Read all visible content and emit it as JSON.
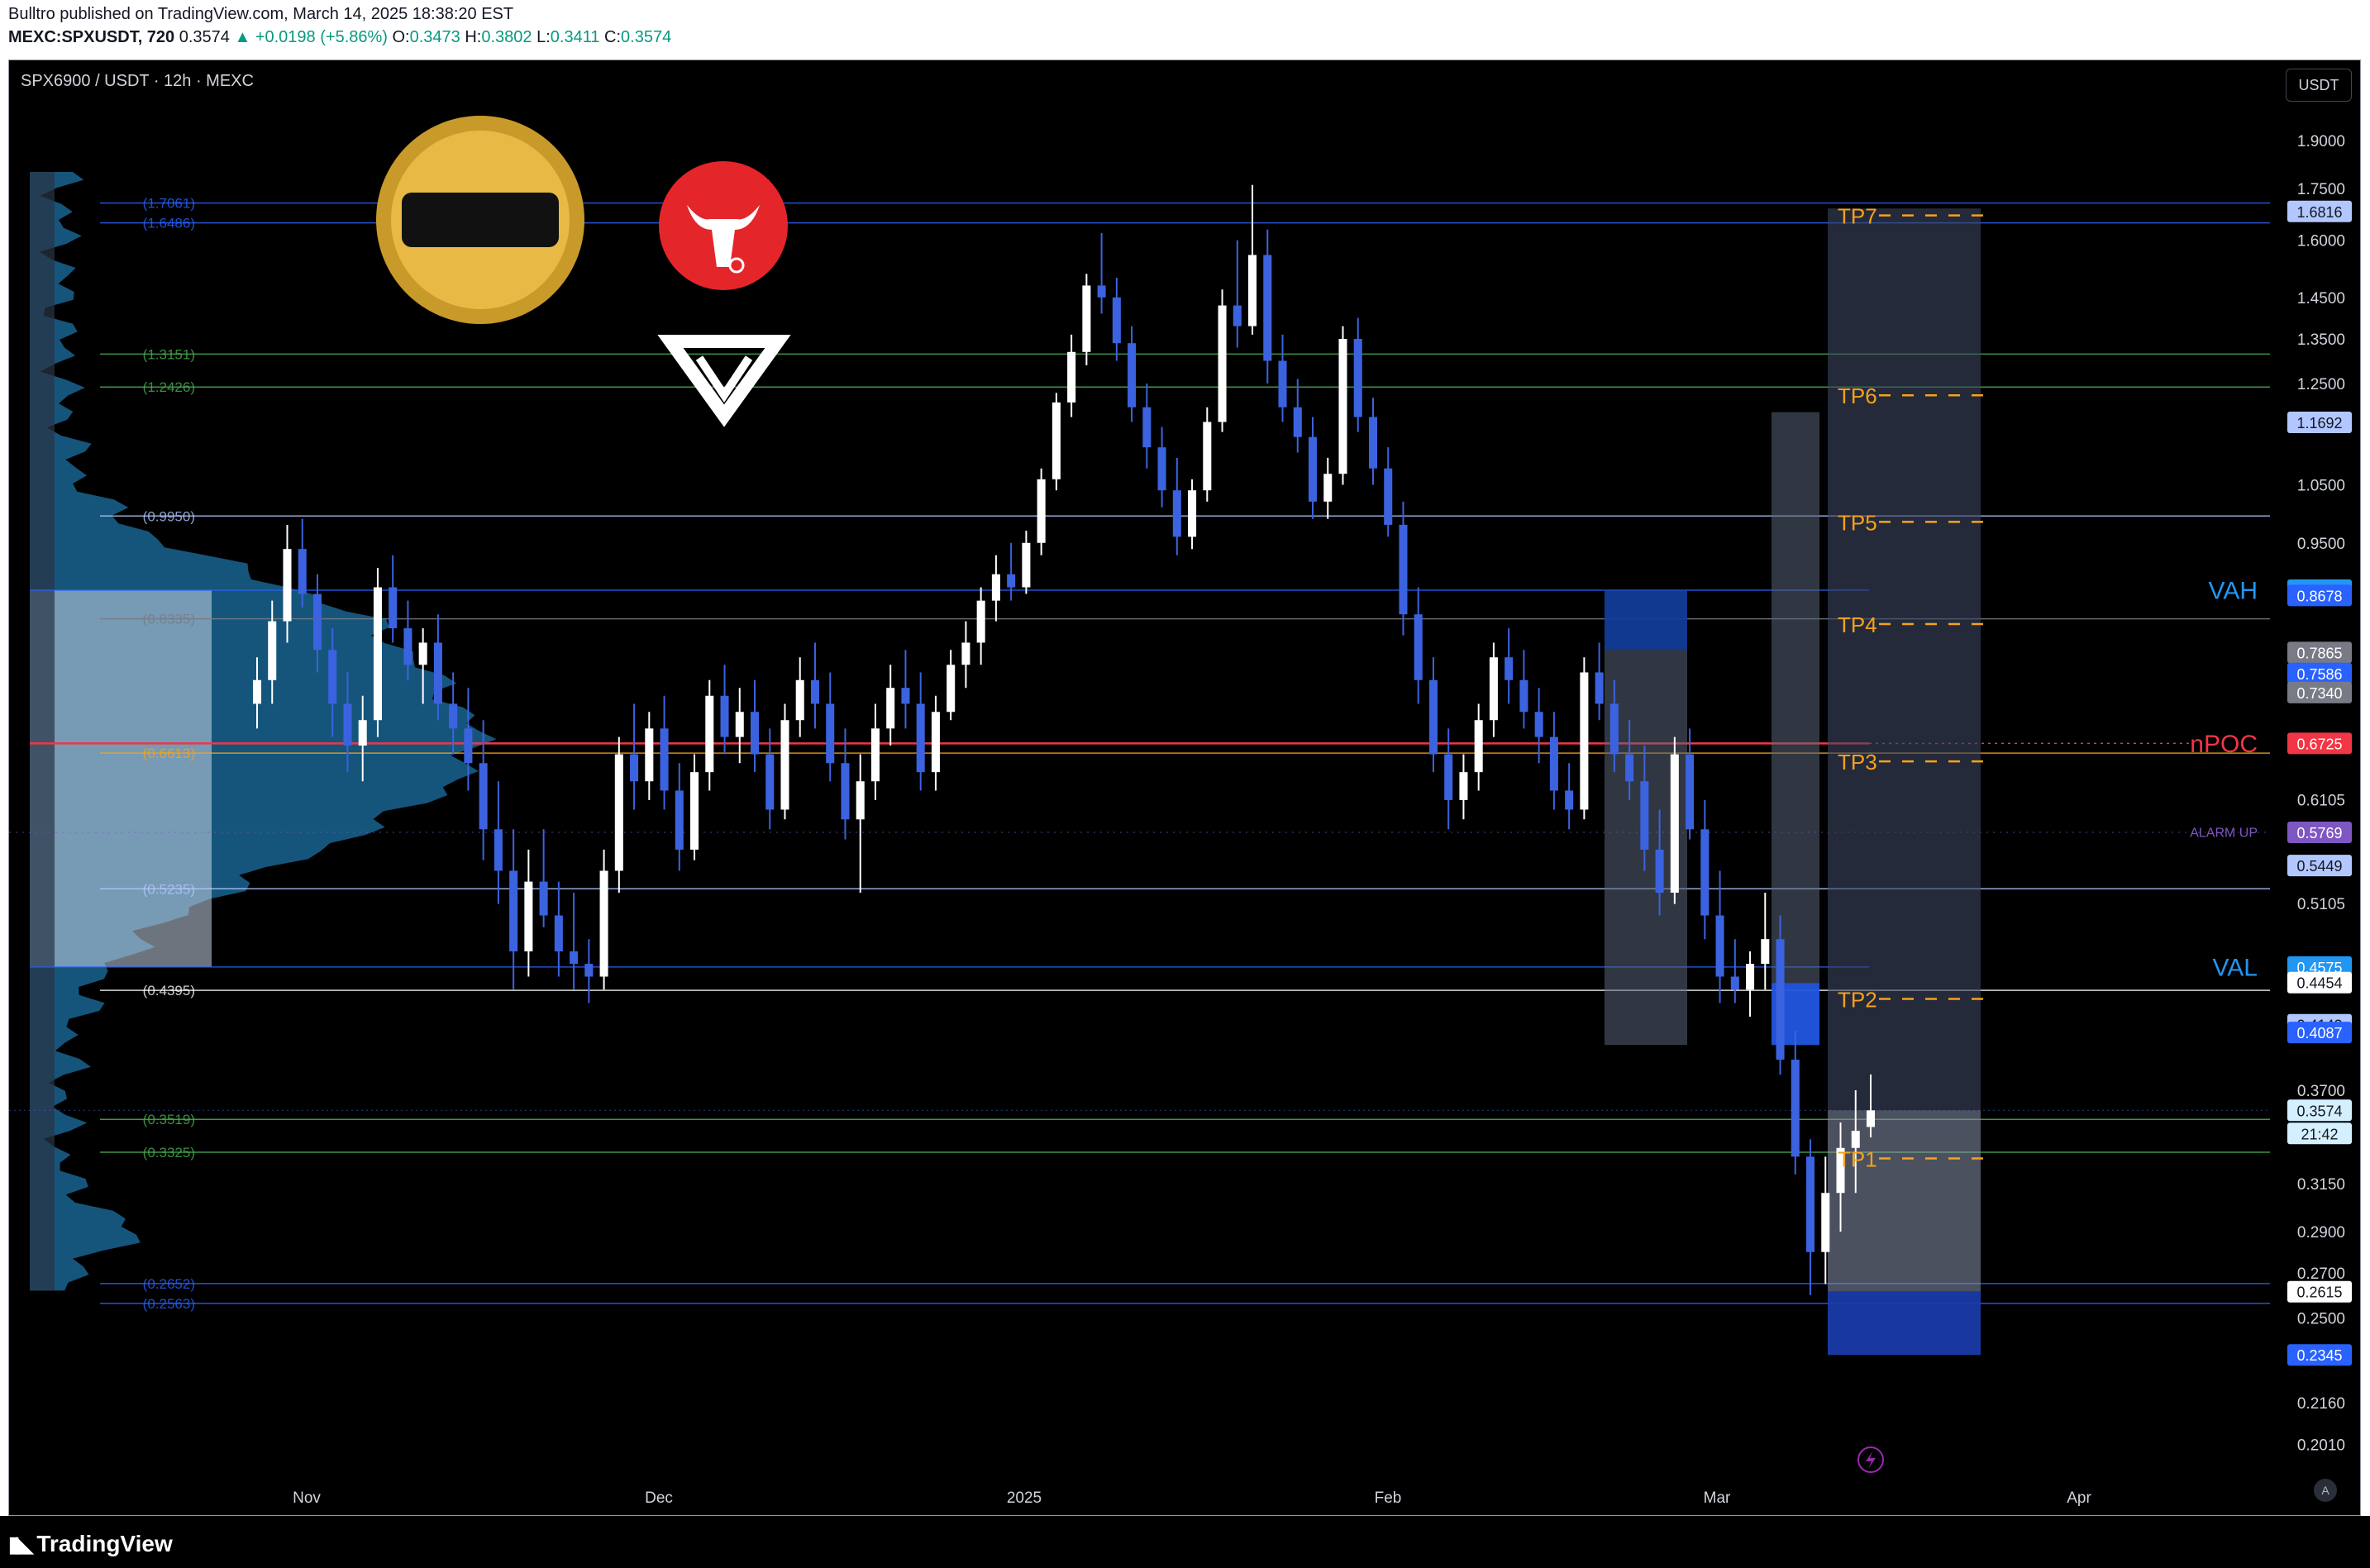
{
  "header": {
    "published_by": "Bulltro published on TradingView.com, March 14, 2025 18:38:20 EST",
    "symbol_line": "MEXC:SPXUSDT, 720",
    "last": "0.3574",
    "change": "▲ +0.0198 (+5.86%)",
    "ohlc": {
      "o_label": "O:",
      "o": "0.3473",
      "h_label": "H:",
      "h": "0.3802",
      "l_label": "L:",
      "l": "0.3411",
      "c_label": "C:",
      "c": "0.3574"
    }
  },
  "chart": {
    "symbol_title": "SPX6900 / USDT · 12h · MEXC",
    "currency_button": "USDT",
    "auto_button": "A",
    "logo_text": "TradingView",
    "colors": {
      "background": "#000000",
      "candle": "#3b63e0",
      "candle_up": "#ffffff",
      "tp": "#f7a21b",
      "npoc": "#f23645",
      "vah": "#2196f3"
    }
  },
  "chart_data": {
    "type": "candlestick",
    "title": "SPX6900 / USDT · 12h · MEXC",
    "y_scale": "log",
    "ylim": [
      0.18,
      2.05
    ],
    "x_ticks": [
      "Nov",
      "Dec",
      "2025",
      "Feb",
      "Mar",
      "Apr"
    ],
    "y_ticks": [
      "1.9000",
      "1.7500",
      "1.6000",
      "1.4500",
      "1.3500",
      "1.2500",
      "1.0500",
      "0.9500",
      "0.6105",
      "0.5105",
      "0.3700",
      "0.3150",
      "0.2900",
      "0.2700",
      "0.2500",
      "0.2160",
      "0.2010"
    ],
    "price_tags": [
      {
        "value": "1.6816",
        "color": "#b2c7ff",
        "text_color": "#131722"
      },
      {
        "value": "1.1692",
        "color": "#b2c7ff",
        "text_color": "#131722"
      },
      {
        "value": "0.8757",
        "color": "#2196f3",
        "text_color": "#ffffff"
      },
      {
        "value": "0.8678",
        "color": "#2962ff",
        "text_color": "#ffffff"
      },
      {
        "value": "0.7865",
        "color": "#787b86",
        "text_color": "#ffffff"
      },
      {
        "value": "0.7586",
        "color": "#2962ff",
        "text_color": "#ffffff"
      },
      {
        "value": "0.7340",
        "color": "#787b86",
        "text_color": "#ffffff"
      },
      {
        "value": "0.6725",
        "color": "#f23645",
        "text_color": "#ffffff"
      },
      {
        "value": "0.5769",
        "color": "#7e57c2",
        "text_color": "#ffffff"
      },
      {
        "value": "0.5449",
        "color": "#b2c7ff",
        "text_color": "#131722"
      },
      {
        "value": "0.4575",
        "color": "#2196f3",
        "text_color": "#ffffff"
      },
      {
        "value": "0.4454",
        "color": "#ffffff",
        "text_color": "#131722"
      },
      {
        "value": "0.4142",
        "color": "#b2c7ff",
        "text_color": "#131722"
      },
      {
        "value": "0.4087",
        "color": "#2962ff",
        "text_color": "#ffffff"
      },
      {
        "value": "0.3574",
        "color": "#d4f0ff",
        "text_color": "#131722"
      },
      {
        "value": "21:42",
        "color": "#d4f0ff",
        "text_color": "#131722"
      },
      {
        "value": "0.2615",
        "color": "#ffffff",
        "text_color": "#131722"
      },
      {
        "value": "0.2345",
        "color": "#2962ff",
        "text_color": "#ffffff"
      }
    ],
    "fib_levels": [
      {
        "label": "(1.7061)",
        "value": 1.7061,
        "color": "#2962ff"
      },
      {
        "label": "(1.6486)",
        "value": 1.6486,
        "color": "#2962ff"
      },
      {
        "label": "(1.3151)",
        "value": 1.3151,
        "color": "#4caf50"
      },
      {
        "label": "(1.2426)",
        "value": 1.2426,
        "color": "#4caf50"
      },
      {
        "label": "(0.9950)",
        "value": 0.995,
        "color": "#b2c7ff"
      },
      {
        "label": "(0.8335)",
        "value": 0.8335,
        "color": "#787b86"
      },
      {
        "label": "(0.6613)",
        "value": 0.6613,
        "color": "#f7a21b"
      },
      {
        "label": "(0.5235)",
        "value": 0.5235,
        "color": "#b2c7ff"
      },
      {
        "label": "(0.4395)",
        "value": 0.4395,
        "color": "#ffffff"
      },
      {
        "label": "(0.3519)",
        "value": 0.3519,
        "color": "#4caf50"
      },
      {
        "label": "(0.3325)",
        "value": 0.3325,
        "color": "#4caf50"
      },
      {
        "label": "(0.2652)",
        "value": 0.2652,
        "color": "#2962ff"
      },
      {
        "label": "(0.2563)",
        "value": 0.2563,
        "color": "#2962ff"
      }
    ],
    "tp_targets": [
      {
        "label": "TP7",
        "value": 1.67
      },
      {
        "label": "TP6",
        "value": 1.225
      },
      {
        "label": "TP5",
        "value": 0.985
      },
      {
        "label": "TP4",
        "value": 0.826
      },
      {
        "label": "TP3",
        "value": 0.652
      },
      {
        "label": "TP2",
        "value": 0.433
      },
      {
        "label": "TP1",
        "value": 0.329
      }
    ],
    "annotations": [
      {
        "label": "VAH",
        "value": 0.8757
      },
      {
        "label": "nPOC",
        "value": 0.6725
      },
      {
        "label": "ALARM UP",
        "value": 0.5769
      },
      {
        "label": "VAL",
        "value": 0.4575
      }
    ],
    "series": [
      {
        "name": "",
        "ohlc_approx": [
          [
            0.72,
            0.78,
            0.69,
            0.75
          ],
          [
            0.75,
            0.86,
            0.72,
            0.83
          ],
          [
            0.83,
            0.98,
            0.8,
            0.94
          ],
          [
            0.94,
            0.99,
            0.85,
            0.87
          ],
          [
            0.87,
            0.9,
            0.76,
            0.79
          ],
          [
            0.79,
            0.82,
            0.68,
            0.72
          ],
          [
            0.72,
            0.76,
            0.64,
            0.67
          ],
          [
            0.67,
            0.73,
            0.63,
            0.7
          ],
          [
            0.7,
            0.91,
            0.68,
            0.88
          ],
          [
            0.88,
            0.93,
            0.8,
            0.82
          ],
          [
            0.82,
            0.86,
            0.75,
            0.77
          ],
          [
            0.77,
            0.82,
            0.72,
            0.8
          ],
          [
            0.8,
            0.84,
            0.7,
            0.72
          ],
          [
            0.72,
            0.76,
            0.66,
            0.69
          ],
          [
            0.69,
            0.74,
            0.62,
            0.65
          ],
          [
            0.65,
            0.7,
            0.55,
            0.58
          ],
          [
            0.58,
            0.63,
            0.51,
            0.54
          ],
          [
            0.54,
            0.58,
            0.44,
            0.47
          ],
          [
            0.47,
            0.56,
            0.45,
            0.53
          ],
          [
            0.53,
            0.58,
            0.49,
            0.5
          ],
          [
            0.5,
            0.53,
            0.45,
            0.47
          ],
          [
            0.47,
            0.52,
            0.44,
            0.46
          ],
          [
            0.46,
            0.48,
            0.43,
            0.45
          ],
          [
            0.45,
            0.56,
            0.44,
            0.54
          ],
          [
            0.54,
            0.68,
            0.52,
            0.66
          ],
          [
            0.66,
            0.72,
            0.6,
            0.63
          ],
          [
            0.63,
            0.71,
            0.61,
            0.69
          ],
          [
            0.69,
            0.73,
            0.6,
            0.62
          ],
          [
            0.62,
            0.65,
            0.54,
            0.56
          ],
          [
            0.56,
            0.66,
            0.55,
            0.64
          ],
          [
            0.64,
            0.75,
            0.62,
            0.73
          ],
          [
            0.73,
            0.77,
            0.66,
            0.68
          ],
          [
            0.68,
            0.74,
            0.65,
            0.71
          ],
          [
            0.71,
            0.75,
            0.64,
            0.66
          ],
          [
            0.66,
            0.69,
            0.58,
            0.6
          ],
          [
            0.6,
            0.72,
            0.59,
            0.7
          ],
          [
            0.7,
            0.78,
            0.68,
            0.75
          ],
          [
            0.75,
            0.8,
            0.69,
            0.72
          ],
          [
            0.72,
            0.76,
            0.63,
            0.65
          ],
          [
            0.65,
            0.69,
            0.57,
            0.59
          ],
          [
            0.59,
            0.66,
            0.52,
            0.63
          ],
          [
            0.63,
            0.72,
            0.61,
            0.69
          ],
          [
            0.69,
            0.77,
            0.67,
            0.74
          ],
          [
            0.74,
            0.79,
            0.69,
            0.72
          ],
          [
            0.72,
            0.76,
            0.62,
            0.64
          ],
          [
            0.64,
            0.73,
            0.62,
            0.71
          ],
          [
            0.71,
            0.79,
            0.7,
            0.77
          ],
          [
            0.77,
            0.83,
            0.74,
            0.8
          ],
          [
            0.8,
            0.88,
            0.77,
            0.86
          ],
          [
            0.86,
            0.93,
            0.83,
            0.9
          ],
          [
            0.9,
            0.95,
            0.86,
            0.88
          ],
          [
            0.88,
            0.97,
            0.87,
            0.95
          ],
          [
            0.95,
            1.08,
            0.93,
            1.06
          ],
          [
            1.06,
            1.23,
            1.04,
            1.21
          ],
          [
            1.21,
            1.36,
            1.18,
            1.32
          ],
          [
            1.32,
            1.51,
            1.29,
            1.48
          ],
          [
            1.48,
            1.62,
            1.41,
            1.45
          ],
          [
            1.45,
            1.5,
            1.3,
            1.34
          ],
          [
            1.34,
            1.38,
            1.17,
            1.2
          ],
          [
            1.2,
            1.25,
            1.08,
            1.12
          ],
          [
            1.12,
            1.16,
            1.01,
            1.04
          ],
          [
            1.04,
            1.1,
            0.93,
            0.96
          ],
          [
            0.96,
            1.06,
            0.94,
            1.04
          ],
          [
            1.04,
            1.2,
            1.02,
            1.17
          ],
          [
            1.17,
            1.47,
            1.15,
            1.43
          ],
          [
            1.43,
            1.6,
            1.33,
            1.38
          ],
          [
            1.38,
            1.76,
            1.36,
            1.56
          ],
          [
            1.56,
            1.63,
            1.25,
            1.3
          ],
          [
            1.3,
            1.36,
            1.17,
            1.2
          ],
          [
            1.2,
            1.26,
            1.11,
            1.14
          ],
          [
            1.14,
            1.18,
            0.99,
            1.02
          ],
          [
            1.02,
            1.1,
            0.99,
            1.07
          ],
          [
            1.07,
            1.38,
            1.05,
            1.35
          ],
          [
            1.35,
            1.4,
            1.15,
            1.18
          ],
          [
            1.18,
            1.22,
            1.05,
            1.08
          ],
          [
            1.08,
            1.12,
            0.96,
            0.98
          ],
          [
            0.98,
            1.02,
            0.81,
            0.84
          ],
          [
            0.84,
            0.88,
            0.72,
            0.75
          ],
          [
            0.75,
            0.78,
            0.64,
            0.66
          ],
          [
            0.66,
            0.69,
            0.58,
            0.61
          ],
          [
            0.61,
            0.66,
            0.59,
            0.64
          ],
          [
            0.64,
            0.72,
            0.62,
            0.7
          ],
          [
            0.7,
            0.8,
            0.68,
            0.78
          ],
          [
            0.78,
            0.82,
            0.72,
            0.75
          ],
          [
            0.75,
            0.79,
            0.69,
            0.71
          ],
          [
            0.71,
            0.74,
            0.65,
            0.68
          ],
          [
            0.68,
            0.71,
            0.6,
            0.62
          ],
          [
            0.62,
            0.65,
            0.58,
            0.6
          ],
          [
            0.6,
            0.78,
            0.59,
            0.76
          ],
          [
            0.76,
            0.8,
            0.7,
            0.72
          ],
          [
            0.72,
            0.75,
            0.64,
            0.66
          ],
          [
            0.66,
            0.7,
            0.61,
            0.63
          ],
          [
            0.63,
            0.67,
            0.54,
            0.56
          ],
          [
            0.56,
            0.6,
            0.5,
            0.52
          ],
          [
            0.52,
            0.68,
            0.51,
            0.66
          ],
          [
            0.66,
            0.69,
            0.57,
            0.58
          ],
          [
            0.58,
            0.61,
            0.48,
            0.5
          ],
          [
            0.5,
            0.54,
            0.43,
            0.45
          ],
          [
            0.45,
            0.48,
            0.43,
            0.44
          ],
          [
            0.44,
            0.47,
            0.42,
            0.46
          ],
          [
            0.46,
            0.52,
            0.44,
            0.48
          ],
          [
            0.48,
            0.5,
            0.38,
            0.39
          ],
          [
            0.39,
            0.41,
            0.32,
            0.33
          ],
          [
            0.33,
            0.34,
            0.26,
            0.28
          ],
          [
            0.28,
            0.33,
            0.265,
            0.31
          ],
          [
            0.31,
            0.35,
            0.29,
            0.335
          ],
          [
            0.335,
            0.37,
            0.31,
            0.345
          ],
          [
            0.3473,
            0.3802,
            0.3411,
            0.3574
          ]
        ]
      }
    ],
    "volume_profile": "horizontal histogram on left, peak near 0.67"
  }
}
